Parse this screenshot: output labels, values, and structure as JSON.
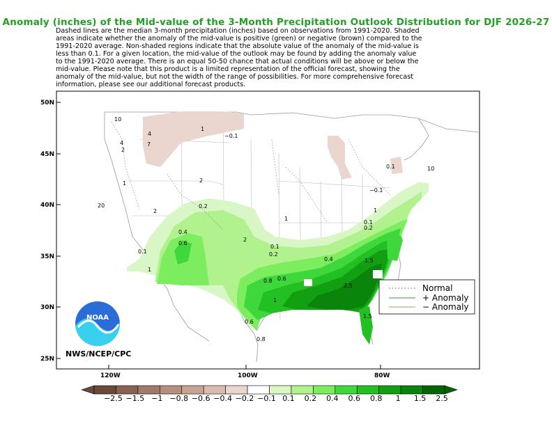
{
  "title": "Anomaly (inches) of the Mid-value of the 3-Month Precipitation Outlook Distribution for DJF 2026-27",
  "description": "Dashed lines are the median 3-month precipitation (inches) based on observations from 1991-2020.  Shaded\nareas indicate whether the anomaly of the mid-value is positive (green) or negative (brown) compared to the\n1991-2020 average.   Non-shaded regions indicate that the absolute value of the anomaly of the mid-value is\nless than 0.1.   For a given location, the mid-value of the outlook may be found by adding the anomaly value\nto the 1991-2020 average. There is an equal 50-50 chance that actual conditions will be above or below the\nmid-value. Please note that this product is a limited representation of the official forecast, showing the\nanomaly of the mid-value, but not the width of the range of possibilities. For more comprehensive forecast\ninformation, please see our additional forecast products.",
  "credit": "NWS/NCEP/CPC",
  "noaa_logo_text": "NOAA",
  "lat_labels": [
    "50N",
    "45N",
    "40N",
    "35N",
    "30N",
    "25N"
  ],
  "lon_labels": [
    "120W",
    "100W",
    "80W"
  ],
  "legend": {
    "normal": "Normal",
    "positive": "+ Anomaly",
    "negative": "− Anomaly"
  },
  "colorbar": {
    "labels": [
      "−2.5",
      "−1.5",
      "−1",
      "−0.8",
      "−0.6",
      "−0.4",
      "−0.2",
      "−0.1",
      "0.1",
      "0.2",
      "0.4",
      "0.6",
      "0.8",
      "1",
      "1.5",
      "2.5"
    ],
    "colors": [
      "#6b4a3c",
      "#8a6252",
      "#a27a6a",
      "#b88e80",
      "#c9a396",
      "#d9bbb0",
      "#ebd6cf",
      "#ffffff",
      "#d9f7c6",
      "#b1f28f",
      "#7ced5e",
      "#3fd83c",
      "#23c023",
      "#12a012",
      "#0a840a",
      "#066606"
    ]
  },
  "colors": {
    "title": "#22a022",
    "positive_contour": "#339933",
    "negative_contour": "#c08878",
    "median_contour": "#909090"
  },
  "contour_labels": [
    "1",
    "4",
    "7",
    "4",
    "2",
    "1",
    "10",
    "20",
    "2",
    "1",
    "2",
    "0.2",
    "0.1",
    "0.4",
    "0.6",
    "2",
    "1",
    "0.2",
    "0.1",
    "0.4",
    "0.8",
    "0.6",
    "1",
    "1.5",
    "2.5",
    "0.6",
    "0.8",
    "1.5",
    "0.1",
    "0.2",
    "−0.1",
    "0.1",
    "1",
    "10",
    "−0.1"
  ]
}
